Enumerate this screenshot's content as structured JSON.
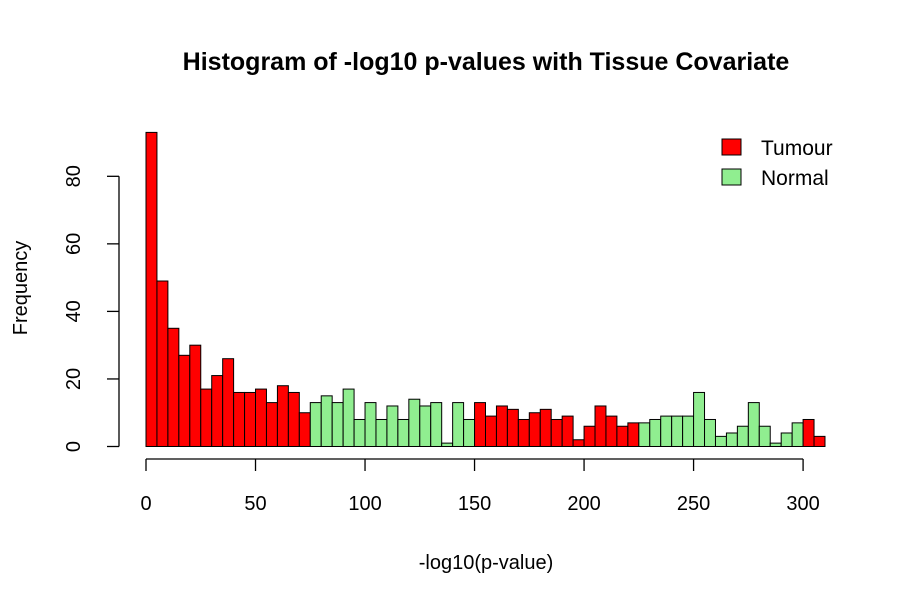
{
  "chart_data": {
    "type": "bar",
    "title": "Histogram of -log10 p-values with Tissue Covariate",
    "xlabel": "-log10(p-value)",
    "ylabel": "Frequency",
    "xlim": [
      0,
      310
    ],
    "ylim": [
      0,
      93
    ],
    "bin_width": 5,
    "x_ticks": [
      0,
      50,
      100,
      150,
      200,
      250,
      300
    ],
    "y_ticks": [
      0,
      20,
      40,
      60,
      80
    ],
    "x_tick_labels": [
      "0",
      "50",
      "100",
      "150",
      "200",
      "250",
      "300"
    ],
    "y_tick_labels": [
      "0",
      "20",
      "40",
      "60",
      "80"
    ],
    "grid": false,
    "legend_position": "top-right",
    "series": [
      {
        "name": "Tumour",
        "color": "#ff0000"
      },
      {
        "name": "Normal",
        "color": "#90ee90"
      }
    ],
    "bins": [
      {
        "start": 0,
        "end": 5,
        "count": 93,
        "series": "Tumour"
      },
      {
        "start": 5,
        "end": 10,
        "count": 49,
        "series": "Tumour"
      },
      {
        "start": 10,
        "end": 15,
        "count": 35,
        "series": "Tumour"
      },
      {
        "start": 15,
        "end": 20,
        "count": 27,
        "series": "Tumour"
      },
      {
        "start": 20,
        "end": 25,
        "count": 30,
        "series": "Tumour"
      },
      {
        "start": 25,
        "end": 30,
        "count": 17,
        "series": "Tumour"
      },
      {
        "start": 30,
        "end": 35,
        "count": 21,
        "series": "Tumour"
      },
      {
        "start": 35,
        "end": 40,
        "count": 26,
        "series": "Tumour"
      },
      {
        "start": 40,
        "end": 45,
        "count": 16,
        "series": "Tumour"
      },
      {
        "start": 45,
        "end": 50,
        "count": 16,
        "series": "Tumour"
      },
      {
        "start": 50,
        "end": 55,
        "count": 17,
        "series": "Tumour"
      },
      {
        "start": 55,
        "end": 60,
        "count": 13,
        "series": "Tumour"
      },
      {
        "start": 60,
        "end": 65,
        "count": 18,
        "series": "Tumour"
      },
      {
        "start": 65,
        "end": 70,
        "count": 16,
        "series": "Tumour"
      },
      {
        "start": 70,
        "end": 75,
        "count": 10,
        "series": "Tumour"
      },
      {
        "start": 75,
        "end": 80,
        "count": 13,
        "series": "Normal"
      },
      {
        "start": 80,
        "end": 85,
        "count": 15,
        "series": "Normal"
      },
      {
        "start": 85,
        "end": 90,
        "count": 13,
        "series": "Normal"
      },
      {
        "start": 90,
        "end": 95,
        "count": 17,
        "series": "Normal"
      },
      {
        "start": 95,
        "end": 100,
        "count": 8,
        "series": "Normal"
      },
      {
        "start": 100,
        "end": 105,
        "count": 13,
        "series": "Normal"
      },
      {
        "start": 105,
        "end": 110,
        "count": 8,
        "series": "Normal"
      },
      {
        "start": 110,
        "end": 115,
        "count": 12,
        "series": "Normal"
      },
      {
        "start": 115,
        "end": 120,
        "count": 8,
        "series": "Normal"
      },
      {
        "start": 120,
        "end": 125,
        "count": 14,
        "series": "Normal"
      },
      {
        "start": 125,
        "end": 130,
        "count": 12,
        "series": "Normal"
      },
      {
        "start": 130,
        "end": 135,
        "count": 13,
        "series": "Normal"
      },
      {
        "start": 135,
        "end": 140,
        "count": 1,
        "series": "Normal"
      },
      {
        "start": 140,
        "end": 145,
        "count": 13,
        "series": "Normal"
      },
      {
        "start": 145,
        "end": 150,
        "count": 8,
        "series": "Normal"
      },
      {
        "start": 150,
        "end": 155,
        "count": 13,
        "series": "Tumour"
      },
      {
        "start": 155,
        "end": 160,
        "count": 9,
        "series": "Tumour"
      },
      {
        "start": 160,
        "end": 165,
        "count": 12,
        "series": "Tumour"
      },
      {
        "start": 165,
        "end": 170,
        "count": 11,
        "series": "Tumour"
      },
      {
        "start": 170,
        "end": 175,
        "count": 8,
        "series": "Tumour"
      },
      {
        "start": 175,
        "end": 180,
        "count": 10,
        "series": "Tumour"
      },
      {
        "start": 180,
        "end": 185,
        "count": 11,
        "series": "Tumour"
      },
      {
        "start": 185,
        "end": 190,
        "count": 8,
        "series": "Tumour"
      },
      {
        "start": 190,
        "end": 195,
        "count": 9,
        "series": "Tumour"
      },
      {
        "start": 195,
        "end": 200,
        "count": 2,
        "series": "Tumour"
      },
      {
        "start": 200,
        "end": 205,
        "count": 6,
        "series": "Tumour"
      },
      {
        "start": 205,
        "end": 210,
        "count": 12,
        "series": "Tumour"
      },
      {
        "start": 210,
        "end": 215,
        "count": 9,
        "series": "Tumour"
      },
      {
        "start": 215,
        "end": 220,
        "count": 6,
        "series": "Tumour"
      },
      {
        "start": 220,
        "end": 225,
        "count": 7,
        "series": "Tumour"
      },
      {
        "start": 225,
        "end": 230,
        "count": 7,
        "series": "Normal"
      },
      {
        "start": 230,
        "end": 235,
        "count": 8,
        "series": "Normal"
      },
      {
        "start": 235,
        "end": 240,
        "count": 9,
        "series": "Normal"
      },
      {
        "start": 240,
        "end": 245,
        "count": 9,
        "series": "Normal"
      },
      {
        "start": 245,
        "end": 250,
        "count": 9,
        "series": "Normal"
      },
      {
        "start": 250,
        "end": 255,
        "count": 16,
        "series": "Normal"
      },
      {
        "start": 255,
        "end": 260,
        "count": 8,
        "series": "Normal"
      },
      {
        "start": 260,
        "end": 265,
        "count": 3,
        "series": "Normal"
      },
      {
        "start": 265,
        "end": 270,
        "count": 4,
        "series": "Normal"
      },
      {
        "start": 270,
        "end": 275,
        "count": 6,
        "series": "Normal"
      },
      {
        "start": 275,
        "end": 280,
        "count": 13,
        "series": "Normal"
      },
      {
        "start": 280,
        "end": 285,
        "count": 6,
        "series": "Normal"
      },
      {
        "start": 285,
        "end": 290,
        "count": 1,
        "series": "Normal"
      },
      {
        "start": 290,
        "end": 295,
        "count": 4,
        "series": "Normal"
      },
      {
        "start": 295,
        "end": 300,
        "count": 7,
        "series": "Normal"
      },
      {
        "start": 300,
        "end": 305,
        "count": 8,
        "series": "Tumour"
      },
      {
        "start": 305,
        "end": 310,
        "count": 3,
        "series": "Tumour"
      }
    ]
  }
}
